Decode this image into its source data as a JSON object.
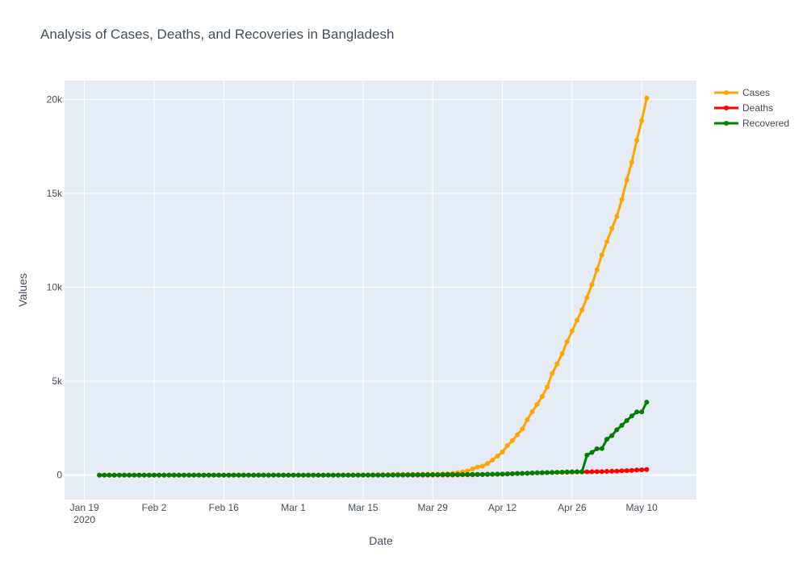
{
  "chart_data": {
    "type": "line",
    "title": "Analysis of Cases, Deaths, and Recoveries in Bangladesh",
    "xlabel": "Date",
    "ylabel": "Values",
    "x_start": "2020-01-22",
    "x_end": "2020-05-15",
    "xlim": [
      "2020-01-15",
      "2020-05-21"
    ],
    "ylim": [
      -1300,
      21000
    ],
    "x_ticks": [
      "Jan 19|2020",
      "Feb 2",
      "Feb 16",
      "Mar 1",
      "Mar 15",
      "Mar 29",
      "Apr 12",
      "Apr 26",
      "May 10"
    ],
    "y_ticks": [
      "0",
      "5k",
      "10k",
      "15k",
      "20k"
    ],
    "grid": true,
    "legend_position": "top-right",
    "background": "#e5ecf6",
    "series": [
      {
        "name": "Cases",
        "color": "#ffa500",
        "values": [
          0,
          0,
          0,
          0,
          0,
          0,
          0,
          0,
          0,
          0,
          0,
          0,
          0,
          0,
          0,
          0,
          0,
          0,
          0,
          0,
          0,
          0,
          0,
          0,
          0,
          0,
          0,
          0,
          0,
          0,
          0,
          0,
          0,
          0,
          0,
          0,
          0,
          0,
          0,
          0,
          0,
          0,
          0,
          0,
          0,
          0,
          3,
          3,
          3,
          3,
          5,
          8,
          10,
          10,
          14,
          17,
          20,
          25,
          27,
          33,
          39,
          39,
          44,
          48,
          48,
          49,
          51,
          54,
          56,
          61,
          70,
          88,
          123,
          164,
          218,
          330,
          424,
          482,
          621,
          803,
          1012,
          1231,
          1572,
          1838,
          2144,
          2456,
          2948,
          3382,
          3772,
          4186,
          4689,
          5416,
          5913,
          6462,
          7103,
          7667,
          8238,
          8790,
          9455,
          10143,
          10929,
          11719,
          12425,
          13134,
          13770,
          14657,
          15691,
          16660,
          17822,
          18863,
          20065
        ]
      },
      {
        "name": "Deaths",
        "color": "#ff0000",
        "values": [
          0,
          0,
          0,
          0,
          0,
          0,
          0,
          0,
          0,
          0,
          0,
          0,
          0,
          0,
          0,
          0,
          0,
          0,
          0,
          0,
          0,
          0,
          0,
          0,
          0,
          0,
          0,
          0,
          0,
          0,
          0,
          0,
          0,
          0,
          0,
          0,
          0,
          0,
          0,
          0,
          0,
          0,
          0,
          0,
          0,
          0,
          0,
          0,
          0,
          0,
          0,
          0,
          0,
          0,
          0,
          0,
          1,
          2,
          2,
          3,
          4,
          4,
          5,
          5,
          5,
          5,
          5,
          6,
          6,
          6,
          8,
          9,
          12,
          17,
          20,
          21,
          27,
          30,
          34,
          39,
          46,
          50,
          60,
          75,
          84,
          91,
          101,
          110,
          120,
          127,
          131,
          140,
          145,
          152,
          155,
          163,
          168,
          170,
          175,
          177,
          183,
          186,
          199,
          206,
          214,
          228,
          239,
          250,
          269,
          283,
          298
        ]
      },
      {
        "name": "Recovered",
        "color": "#008000",
        "values": [
          0,
          0,
          0,
          0,
          0,
          0,
          0,
          0,
          0,
          0,
          0,
          0,
          0,
          0,
          0,
          0,
          0,
          0,
          0,
          0,
          0,
          0,
          0,
          0,
          0,
          0,
          0,
          0,
          0,
          0,
          0,
          0,
          0,
          0,
          0,
          0,
          0,
          0,
          0,
          0,
          0,
          0,
          0,
          0,
          0,
          0,
          0,
          0,
          0,
          0,
          0,
          0,
          3,
          3,
          3,
          3,
          3,
          3,
          5,
          7,
          11,
          15,
          15,
          19,
          25,
          25,
          26,
          26,
          26,
          30,
          33,
          33,
          33,
          35,
          36,
          39,
          42,
          42,
          49,
          49,
          58,
          58,
          66,
          75,
          87,
          92,
          100,
          113,
          125,
          130,
          135,
          140,
          150,
          160,
          171,
          174,
          177,
          183,
          1063,
          1210,
          1403,
          1410,
          1910,
          2101,
          2414,
          2650,
          2902,
          3147,
          3361,
          3361,
          3882
        ]
      }
    ]
  }
}
